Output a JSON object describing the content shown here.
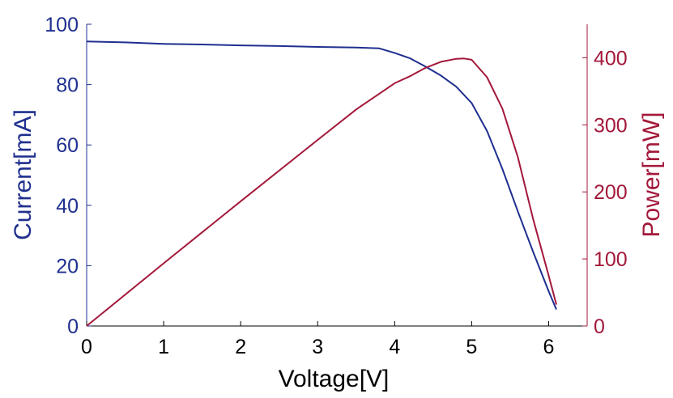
{
  "chart_data": {
    "type": "line",
    "title": "",
    "xlabel": "Voltage[V]",
    "ylabel_left": "Current[mA]",
    "ylabel_right": "Power[mW]",
    "xlim": [
      0,
      6.5
    ],
    "ylim_left": [
      0,
      100
    ],
    "ylim_right": [
      0,
      450
    ],
    "x_ticks": [
      "0",
      "1",
      "2",
      "3",
      "4",
      "5",
      "6"
    ],
    "y_left_ticks": [
      "0",
      "20",
      "40",
      "60",
      "80",
      "100"
    ],
    "y_right_ticks": [
      "0",
      "100",
      "200",
      "300",
      "400"
    ],
    "grid": false,
    "colors": {
      "current": "#1f2f8f",
      "power": "#a3183a",
      "axis": "#000000"
    },
    "series": [
      {
        "axis": "left",
        "x": [
          0,
          0.5,
          1.0,
          1.5,
          2.0,
          2.5,
          3.0,
          3.5,
          3.8,
          4.0,
          4.2,
          4.4,
          4.6,
          4.8,
          5.0,
          5.2,
          5.4,
          5.6,
          5.8,
          6.0,
          6.1
        ],
        "values": [
          94.3,
          94.0,
          93.5,
          93.3,
          93.0,
          92.8,
          92.5,
          92.3,
          92.0,
          90.5,
          88.7,
          86.0,
          83.0,
          79.3,
          73.9,
          64.6,
          52.0,
          38.0,
          24.5,
          11.5,
          5.5
        ]
      },
      {
        "axis": "right",
        "x": [
          0,
          1.0,
          2.0,
          3.0,
          3.5,
          4.0,
          4.2,
          4.4,
          4.6,
          4.8,
          4.9,
          5.0,
          5.2,
          5.4,
          5.6,
          5.8,
          6.0,
          6.1
        ],
        "values": [
          0,
          93.5,
          186,
          277.5,
          323,
          362,
          372.5,
          385,
          394,
          398.5,
          399,
          397,
          371,
          324,
          252,
          159,
          75,
          32
        ]
      }
    ]
  }
}
